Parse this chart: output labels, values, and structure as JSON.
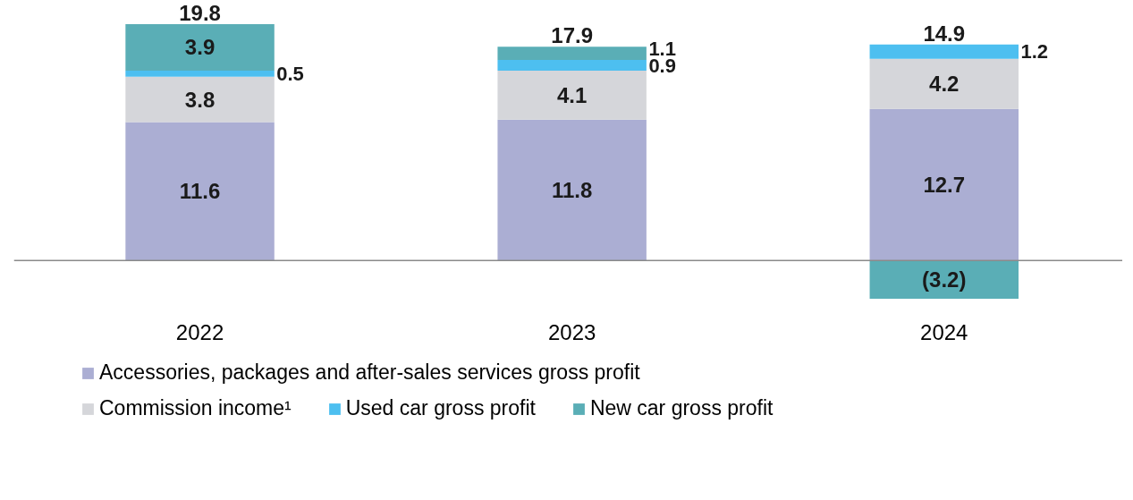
{
  "chart_data": {
    "type": "bar",
    "stacked": true,
    "categories": [
      "2022",
      "2023",
      "2024"
    ],
    "series": [
      {
        "name": "Accessories, packages and after-sales services gross profit",
        "color": "#abaed3",
        "values": [
          11.6,
          11.8,
          12.7
        ]
      },
      {
        "name": "Commission income¹",
        "color": "#d5d6da",
        "values": [
          3.8,
          4.1,
          4.2
        ]
      },
      {
        "name": "Used car gross profit",
        "color": "#4dbff0",
        "values": [
          0.5,
          0.9,
          1.2
        ]
      },
      {
        "name": "New car gross profit",
        "color": "#5aaeb6",
        "values": [
          3.9,
          1.1,
          -3.2
        ],
        "value_labels": [
          "3.9",
          "1.1",
          "(3.2)"
        ]
      }
    ],
    "data_labels": true,
    "totals": [
      "19.8",
      "17.9",
      "14.9"
    ],
    "legend": "bottom",
    "grid": false
  }
}
